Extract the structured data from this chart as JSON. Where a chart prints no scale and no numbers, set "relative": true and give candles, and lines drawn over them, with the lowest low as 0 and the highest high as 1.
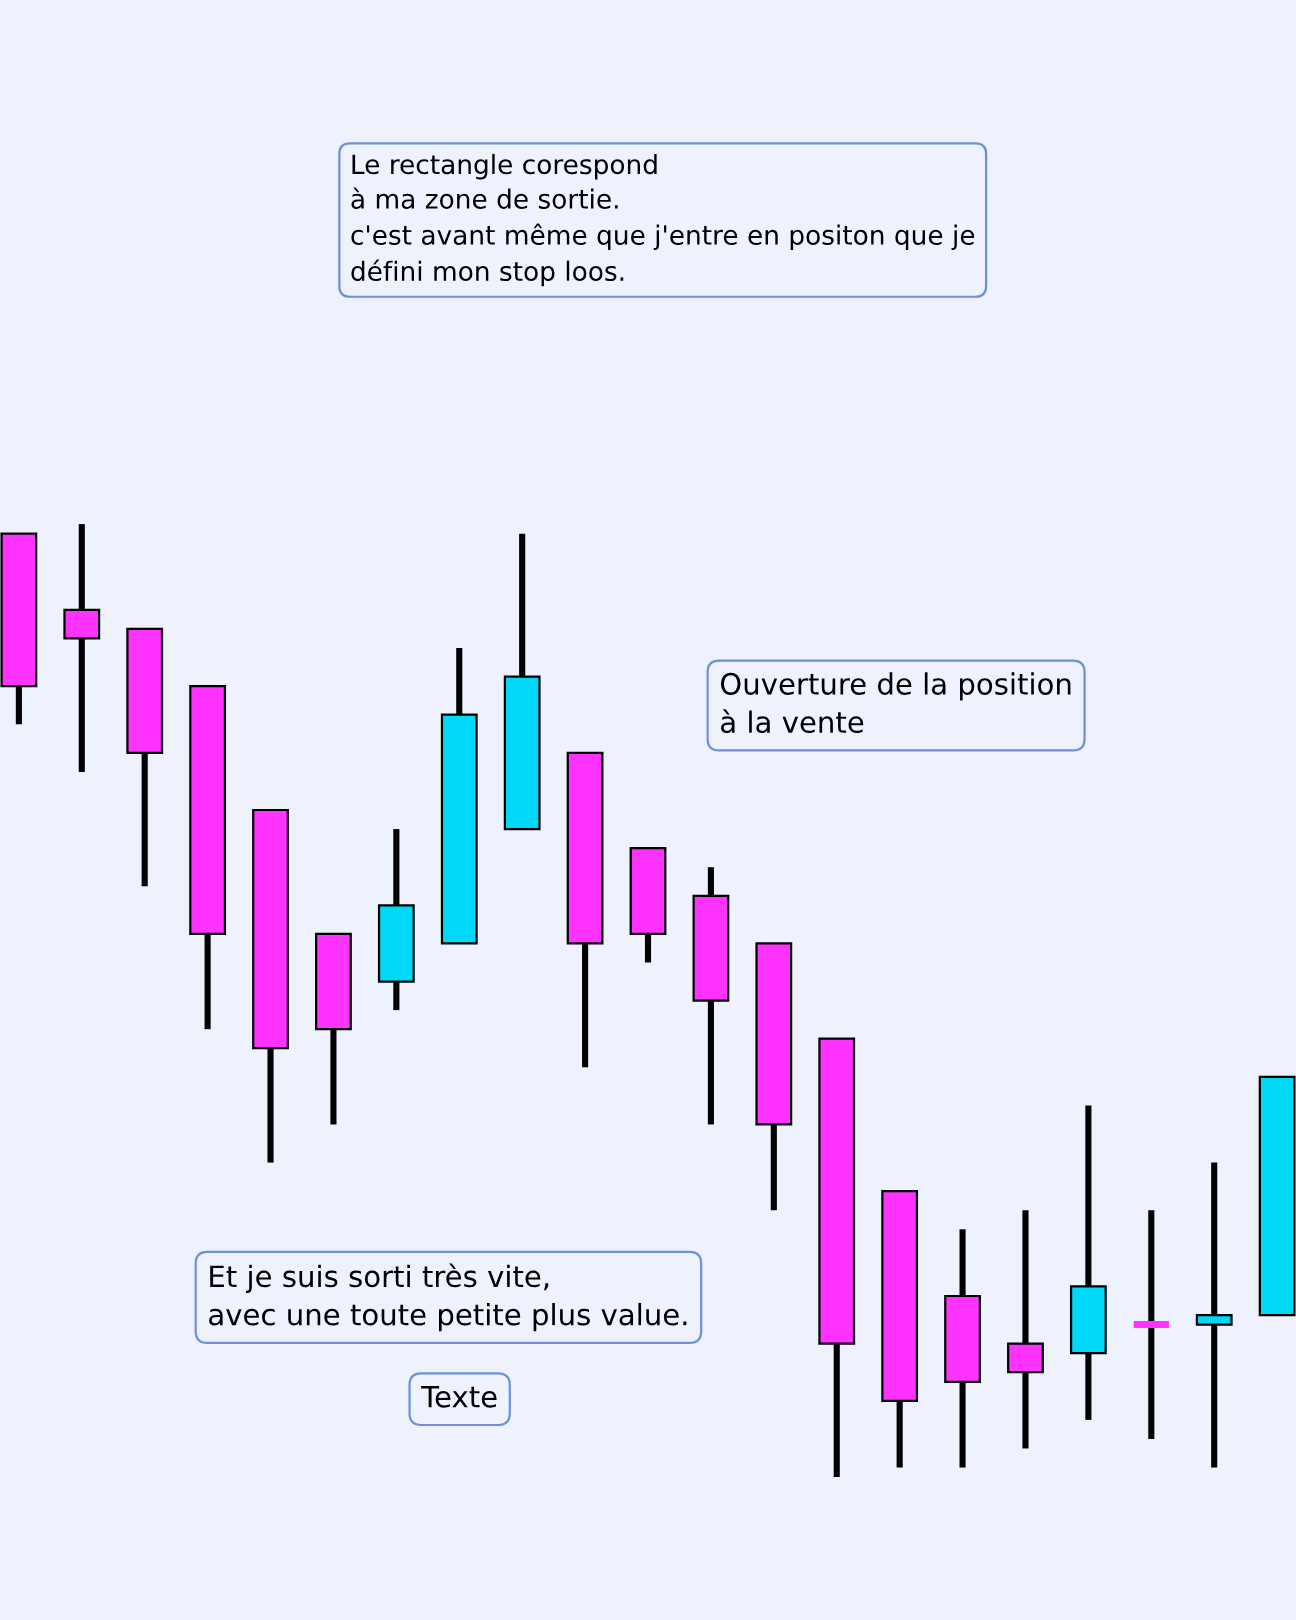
{
  "chart_data": {
    "type": "candlestick",
    "relative": true,
    "categories": [
      null,
      null,
      null,
      null,
      null,
      null,
      null,
      null,
      null,
      null,
      null,
      null,
      null,
      null,
      null,
      null,
      null,
      null,
      null,
      null,
      null
    ],
    "ohlc": [
      [
        0.99,
        0.99,
        0.79,
        0.83
      ],
      [
        0.91,
        1.0,
        0.74,
        0.88
      ],
      [
        0.89,
        0.89,
        0.62,
        0.76
      ],
      [
        0.83,
        0.83,
        0.47,
        0.57
      ],
      [
        0.7,
        0.7,
        0.33,
        0.45
      ],
      [
        0.57,
        0.57,
        0.37,
        0.47
      ],
      [
        0.52,
        0.68,
        0.49,
        0.6
      ],
      [
        0.56,
        0.87,
        0.56,
        0.8
      ],
      [
        0.68,
        0.99,
        0.68,
        0.84
      ],
      [
        0.76,
        0.76,
        0.43,
        0.56
      ],
      [
        0.66,
        0.66,
        0.54,
        0.57
      ],
      [
        0.61,
        0.64,
        0.37,
        0.5
      ],
      [
        0.56,
        0.56,
        0.28,
        0.37
      ],
      [
        0.46,
        0.46,
        0.0,
        0.14
      ],
      [
        0.3,
        0.3,
        0.01,
        0.08
      ],
      [
        0.19,
        0.26,
        0.01,
        0.1
      ],
      [
        0.14,
        0.28,
        0.03,
        0.11
      ],
      [
        0.13,
        0.39,
        0.06,
        0.2
      ],
      [
        0.16,
        0.28,
        0.04,
        0.16
      ],
      [
        0.16,
        0.33,
        0.01,
        0.17
      ],
      [
        0.17,
        0.42,
        0.17,
        0.42
      ]
    ],
    "colors": [
      "#ff33ff",
      "#ff33ff",
      "#ff33ff",
      "#ff33ff",
      "#ff33ff",
      "#ff33ff",
      "#00d8f8",
      "#00d8f8",
      "#00d8f8",
      "#ff33ff",
      "#ff33ff",
      "#ff33ff",
      "#ff33ff",
      "#ff33ff",
      "#ff33ff",
      "#ff33ff",
      "#ff33ff",
      "#00d8f8",
      "#ff33ff",
      "#00d8f8",
      "#00d8f8"
    ],
    "annotations": [
      "Le rectangle corespond\nà ma zone de sortie.\nc'est avant même que j'entre en positon que je\ndéfini mon stop loos.",
      "Ouverture de la position\nà la vente",
      "Et je suis sorti très vite,\navec une toute petite plus value.",
      "Texte"
    ]
  }
}
